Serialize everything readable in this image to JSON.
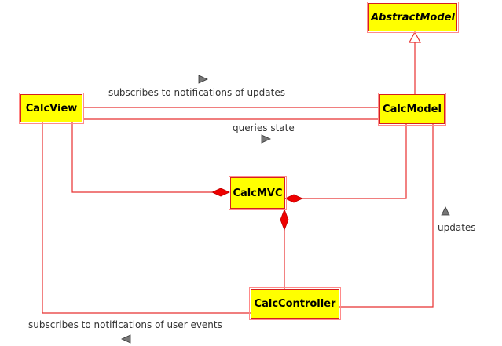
{
  "diagram": {
    "classes": {
      "abstract_model": "AbstractModel",
      "calc_view": "CalcView",
      "calc_model": "CalcModel",
      "calc_mvc": "CalcMVC",
      "calc_controller": "CalcController"
    },
    "labels": {
      "subscribes_updates": "subscribes to notifications of updates",
      "queries_state": "queries state",
      "updates": "updates",
      "subscribes_user_events": "subscribes to notifications of user events"
    }
  },
  "colors": {
    "class_fill": "#ffff00",
    "line": "#e83030",
    "border": "#d42020",
    "arrow_gray": "#777777"
  }
}
